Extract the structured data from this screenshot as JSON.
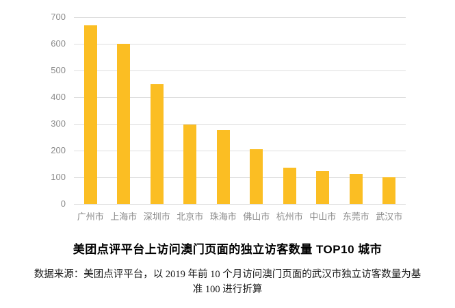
{
  "chart_data": {
    "type": "bar",
    "categories": [
      "广州市",
      "上海市",
      "深圳市",
      "北京市",
      "珠海市",
      "佛山市",
      "杭州市",
      "中山市",
      "东莞市",
      "武汉市"
    ],
    "values": [
      670,
      600,
      450,
      298,
      277,
      206,
      136,
      123,
      112,
      100
    ],
    "title": "美团点评平台上访问澳门页面的独立访客数量 TOP10 城市",
    "xlabel": "",
    "ylabel": "",
    "ylim": [
      0,
      700
    ],
    "yticks": [
      0,
      100,
      200,
      300,
      400,
      500,
      600,
      700
    ],
    "grid": true,
    "legend": false
  },
  "source_note": {
    "line1": "数据来源：美团点评平台，以 2019 年前 10 个月访问澳门页面的武汉市独立访客数量为基",
    "line2": "准 100 进行折算"
  },
  "colors": {
    "bar": "#FBBE23",
    "grid": "#dddddd",
    "axis_label": "#8a8a8a",
    "title": "#000000"
  }
}
